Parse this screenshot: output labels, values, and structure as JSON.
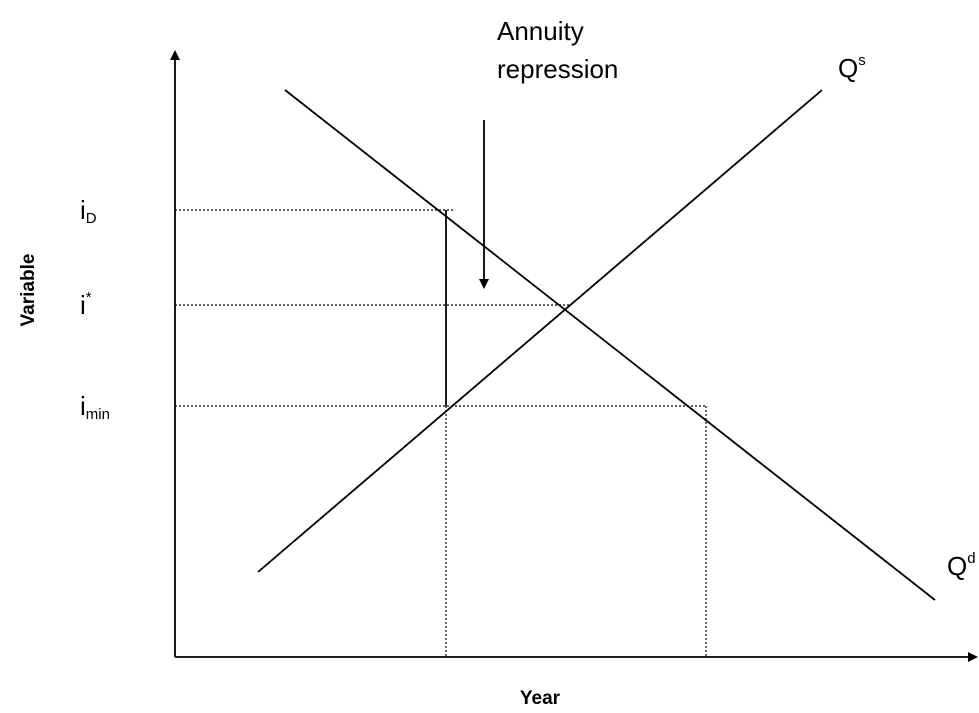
{
  "axes": {
    "x_label": "Year",
    "y_label": "Variable"
  },
  "annotation": {
    "lines": [
      "Annuity",
      "repression"
    ]
  },
  "curves": [
    {
      "label": "Q",
      "superscript": "s"
    },
    {
      "label": "Q",
      "superscript": "d"
    }
  ],
  "levels": [
    {
      "label": "i",
      "subscript": "D"
    },
    {
      "label": "i",
      "superscript": "*"
    },
    {
      "label": "i",
      "subscript": "min"
    }
  ]
}
